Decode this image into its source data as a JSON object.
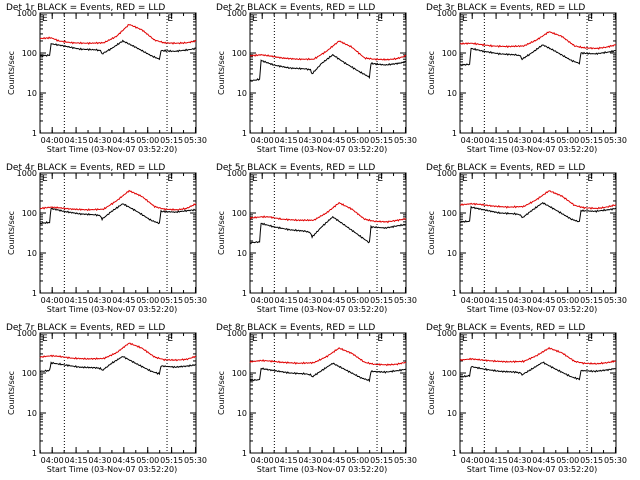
{
  "colors": {
    "events": "#000000",
    "lld": "#e00000",
    "axis": "#000000",
    "background": "#ffffff"
  },
  "common": {
    "ylabel": "Counts/sec",
    "xlabel": "Start Time (03-Nov-07 03:52:20)",
    "marker_label": "E",
    "xtick_labels": [
      "04:00",
      "04:15",
      "04:30",
      "04:45",
      "05:00",
      "05:15",
      "05:30"
    ]
  },
  "chart_data": [
    {
      "type": "line",
      "title": "Det 1r  BLACK = Events, RED = LLD",
      "xlabel": "Start Time (03-Nov-07 03:52:20)",
      "ylabel": "Counts/sec",
      "x_unit": "minutes since 03:52:20",
      "xlim": [
        0,
        98
      ],
      "ylim": [
        1,
        1000
      ],
      "yscale": "log",
      "ytick_labels": [
        "1",
        "10",
        "100",
        "1000"
      ],
      "vlines": [
        15.3,
        79.8
      ],
      "marker_at": 80,
      "series": [
        {
          "name": "Events",
          "color": "#000000",
          "x": [
            0,
            6,
            7,
            15,
            25,
            35,
            38,
            39,
            45,
            52,
            60,
            70,
            75,
            76,
            85,
            93,
            98
          ],
          "y": [
            85,
            88,
            170,
            150,
            125,
            120,
            115,
            95,
            130,
            200,
            140,
            85,
            70,
            115,
            110,
            120,
            130
          ]
        },
        {
          "name": "LLD",
          "color": "#e00000",
          "x": [
            0,
            7,
            12,
            20,
            30,
            40,
            48,
            56,
            64,
            72,
            78,
            86,
            92,
            98
          ],
          "y": [
            230,
            240,
            200,
            180,
            175,
            180,
            260,
            520,
            380,
            210,
            180,
            175,
            180,
            200
          ]
        }
      ]
    },
    {
      "type": "line",
      "title": "Det 2r  BLACK = Events, RED = LLD",
      "xlabel": "Start Time (03-Nov-07 03:52:20)",
      "ylabel": "Counts/sec",
      "x_unit": "minutes since 03:52:20",
      "xlim": [
        0,
        98
      ],
      "ylim": [
        1,
        1000
      ],
      "yscale": "log",
      "ytick_labels": [
        "1",
        "10",
        "100",
        "1000"
      ],
      "vlines": [
        15.3,
        79.8
      ],
      "marker_at": 80,
      "series": [
        {
          "name": "Events",
          "color": "#000000",
          "x": [
            0,
            6,
            7,
            15,
            25,
            35,
            38,
            39,
            45,
            52,
            60,
            70,
            75,
            76,
            85,
            93,
            98
          ],
          "y": [
            20,
            22,
            65,
            50,
            42,
            40,
            38,
            30,
            55,
            90,
            55,
            32,
            25,
            55,
            50,
            55,
            60
          ]
        },
        {
          "name": "LLD",
          "color": "#e00000",
          "x": [
            0,
            7,
            12,
            20,
            30,
            40,
            48,
            56,
            64,
            72,
            78,
            86,
            92,
            98
          ],
          "y": [
            85,
            90,
            85,
            75,
            70,
            70,
            110,
            200,
            140,
            75,
            70,
            68,
            72,
            85
          ]
        }
      ]
    },
    {
      "type": "line",
      "title": "Det 3r  BLACK = Events, RED = LLD",
      "xlabel": "Start Time (03-Nov-07 03:52:20)",
      "ylabel": "Counts/sec",
      "x_unit": "minutes since 03:52:20",
      "xlim": [
        0,
        98
      ],
      "ylim": [
        1,
        1000
      ],
      "yscale": "log",
      "ytick_labels": [
        "1",
        "10",
        "100",
        "1000"
      ],
      "vlines": [
        15.3,
        79.8
      ],
      "marker_at": 80,
      "series": [
        {
          "name": "Events",
          "color": "#000000",
          "x": [
            0,
            6,
            7,
            15,
            25,
            35,
            38,
            39,
            45,
            52,
            60,
            70,
            75,
            76,
            85,
            93,
            98
          ],
          "y": [
            50,
            52,
            130,
            110,
            95,
            90,
            85,
            70,
            100,
            160,
            110,
            65,
            55,
            100,
            95,
            105,
            115
          ]
        },
        {
          "name": "LLD",
          "color": "#e00000",
          "x": [
            0,
            7,
            12,
            20,
            30,
            40,
            48,
            56,
            64,
            72,
            78,
            86,
            92,
            98
          ],
          "y": [
            170,
            175,
            165,
            150,
            145,
            150,
            210,
            340,
            260,
            150,
            135,
            130,
            140,
            160
          ]
        }
      ]
    },
    {
      "type": "line",
      "title": "Det 4r  BLACK = Events, RED = LLD",
      "xlabel": "Start Time (03-Nov-07 03:52:20)",
      "ylabel": "Counts/sec",
      "x_unit": "minutes since 03:52:20",
      "xlim": [
        0,
        98
      ],
      "ylim": [
        1,
        1000
      ],
      "yscale": "log",
      "ytick_labels": [
        "1",
        "10",
        "100",
        "1000"
      ],
      "vlines": [
        15.3,
        79.8
      ],
      "marker_at": 80,
      "series": [
        {
          "name": "Events",
          "color": "#000000",
          "x": [
            0,
            6,
            7,
            15,
            25,
            35,
            38,
            39,
            45,
            52,
            60,
            70,
            75,
            76,
            85,
            93,
            98
          ],
          "y": [
            55,
            58,
            130,
            110,
            95,
            90,
            85,
            70,
            110,
            170,
            115,
            65,
            55,
            110,
            105,
            115,
            120
          ]
        },
        {
          "name": "LLD",
          "color": "#e00000",
          "x": [
            0,
            7,
            12,
            20,
            30,
            40,
            48,
            56,
            64,
            72,
            78,
            86,
            92,
            98
          ],
          "y": [
            130,
            140,
            135,
            125,
            120,
            125,
            200,
            360,
            260,
            145,
            125,
            120,
            130,
            170
          ]
        }
      ]
    },
    {
      "type": "line",
      "title": "Det 5r  BLACK = Events, RED = LLD",
      "xlabel": "Start Time (03-Nov-07 03:52:20)",
      "ylabel": "Counts/sec",
      "x_unit": "minutes since 03:52:20",
      "xlim": [
        0,
        98
      ],
      "ylim": [
        1,
        1000
      ],
      "yscale": "log",
      "ytick_labels": [
        "1",
        "10",
        "100",
        "1000"
      ],
      "vlines": [
        15.3,
        79.8
      ],
      "marker_at": 80,
      "series": [
        {
          "name": "Events",
          "color": "#000000",
          "x": [
            0,
            6,
            7,
            15,
            25,
            35,
            38,
            39,
            45,
            52,
            60,
            70,
            75,
            76,
            85,
            93,
            98
          ],
          "y": [
            18,
            19,
            55,
            45,
            38,
            35,
            32,
            25,
            45,
            80,
            48,
            25,
            18,
            45,
            42,
            48,
            52
          ]
        },
        {
          "name": "LLD",
          "color": "#e00000",
          "x": [
            0,
            7,
            12,
            20,
            30,
            40,
            48,
            56,
            64,
            72,
            78,
            86,
            92,
            98
          ],
          "y": [
            75,
            80,
            80,
            70,
            66,
            66,
            100,
            180,
            125,
            70,
            62,
            60,
            65,
            72
          ]
        }
      ]
    },
    {
      "type": "line",
      "title": "Det 6r  BLACK = Events, RED = LLD",
      "xlabel": "Start Time (03-Nov-07 03:52:20)",
      "ylabel": "Counts/sec",
      "x_unit": "minutes since 03:52:20",
      "xlim": [
        0,
        98
      ],
      "ylim": [
        1,
        1000
      ],
      "yscale": "log",
      "ytick_labels": [
        "1",
        "10",
        "100",
        "1000"
      ],
      "vlines": [
        15.3,
        79.8
      ],
      "marker_at": 80,
      "series": [
        {
          "name": "Events",
          "color": "#000000",
          "x": [
            0,
            6,
            7,
            15,
            25,
            35,
            38,
            39,
            45,
            52,
            60,
            70,
            75,
            76,
            85,
            93,
            98
          ],
          "y": [
            60,
            62,
            140,
            120,
            100,
            95,
            90,
            75,
            115,
            180,
            120,
            70,
            60,
            115,
            110,
            120,
            130
          ]
        },
        {
          "name": "LLD",
          "color": "#e00000",
          "x": [
            0,
            7,
            12,
            20,
            30,
            40,
            48,
            56,
            64,
            72,
            78,
            86,
            92,
            98
          ],
          "y": [
            160,
            170,
            165,
            150,
            140,
            145,
            215,
            360,
            265,
            155,
            135,
            130,
            140,
            160
          ]
        }
      ]
    },
    {
      "type": "line",
      "title": "Det 7r  BLACK = Events, RED = LLD",
      "xlabel": "Start Time (03-Nov-07 03:52:20)",
      "ylabel": "Counts/sec",
      "x_unit": "minutes since 03:52:20",
      "xlim": [
        0,
        98
      ],
      "ylim": [
        1,
        1000
      ],
      "yscale": "log",
      "ytick_labels": [
        "1",
        "10",
        "100",
        "1000"
      ],
      "vlines": [
        15.3,
        79.8
      ],
      "marker_at": 80,
      "series": [
        {
          "name": "Events",
          "color": "#000000",
          "x": [
            0,
            6,
            7,
            15,
            25,
            35,
            38,
            39,
            45,
            52,
            60,
            70,
            75,
            76,
            85,
            93,
            98
          ],
          "y": [
            110,
            115,
            180,
            160,
            140,
            135,
            130,
            115,
            175,
            260,
            175,
            110,
            95,
            150,
            140,
            150,
            160
          ]
        },
        {
          "name": "LLD",
          "color": "#e00000",
          "x": [
            0,
            7,
            12,
            20,
            30,
            40,
            48,
            56,
            64,
            72,
            78,
            86,
            92,
            98
          ],
          "y": [
            250,
            270,
            260,
            235,
            225,
            230,
            320,
            560,
            420,
            250,
            215,
            210,
            220,
            260
          ]
        }
      ]
    },
    {
      "type": "line",
      "title": "Det 8r  BLACK = Events, RED = LLD",
      "xlabel": "Start Time (03-Nov-07 03:52:20)",
      "ylabel": "Counts/sec",
      "x_unit": "minutes since 03:52:20",
      "xlim": [
        0,
        98
      ],
      "ylim": [
        1,
        1000
      ],
      "yscale": "log",
      "ytick_labels": [
        "1",
        "10",
        "100",
        "1000"
      ],
      "vlines": [
        15.3,
        79.8
      ],
      "marker_at": 80,
      "series": [
        {
          "name": "Events",
          "color": "#000000",
          "x": [
            0,
            6,
            7,
            15,
            25,
            35,
            38,
            39,
            45,
            52,
            60,
            70,
            75,
            76,
            85,
            93,
            98
          ],
          "y": [
            65,
            68,
            130,
            115,
            100,
            95,
            90,
            80,
            115,
            175,
            120,
            75,
            65,
            110,
            105,
            115,
            125
          ]
        },
        {
          "name": "LLD",
          "color": "#e00000",
          "x": [
            0,
            7,
            12,
            20,
            30,
            40,
            48,
            56,
            64,
            72,
            78,
            86,
            92,
            98
          ],
          "y": [
            190,
            205,
            200,
            185,
            175,
            180,
            255,
            420,
            310,
            185,
            165,
            160,
            165,
            185
          ]
        }
      ]
    },
    {
      "type": "line",
      "title": "Det 9r  BLACK = Events, RED = LLD",
      "xlabel": "Start Time (03-Nov-07 03:52:20)",
      "ylabel": "Counts/sec",
      "x_unit": "minutes since 03:52:20",
      "xlim": [
        0,
        98
      ],
      "ylim": [
        1,
        1000
      ],
      "yscale": "log",
      "ytick_labels": [
        "1",
        "10",
        "100",
        "1000"
      ],
      "vlines": [
        15.3,
        79.8
      ],
      "marker_at": 80,
      "series": [
        {
          "name": "Events",
          "color": "#000000",
          "x": [
            0,
            6,
            7,
            15,
            25,
            35,
            38,
            39,
            45,
            52,
            60,
            70,
            75,
            76,
            85,
            93,
            98
          ],
          "y": [
            80,
            85,
            145,
            125,
            110,
            105,
            100,
            90,
            125,
            185,
            125,
            80,
            70,
            115,
            110,
            120,
            130
          ]
        },
        {
          "name": "LLD",
          "color": "#e00000",
          "x": [
            0,
            7,
            12,
            20,
            30,
            40,
            48,
            56,
            64,
            72,
            78,
            86,
            92,
            98
          ],
          "y": [
            210,
            225,
            215,
            200,
            190,
            195,
            270,
            420,
            320,
            195,
            175,
            170,
            180,
            200
          ]
        }
      ]
    }
  ]
}
